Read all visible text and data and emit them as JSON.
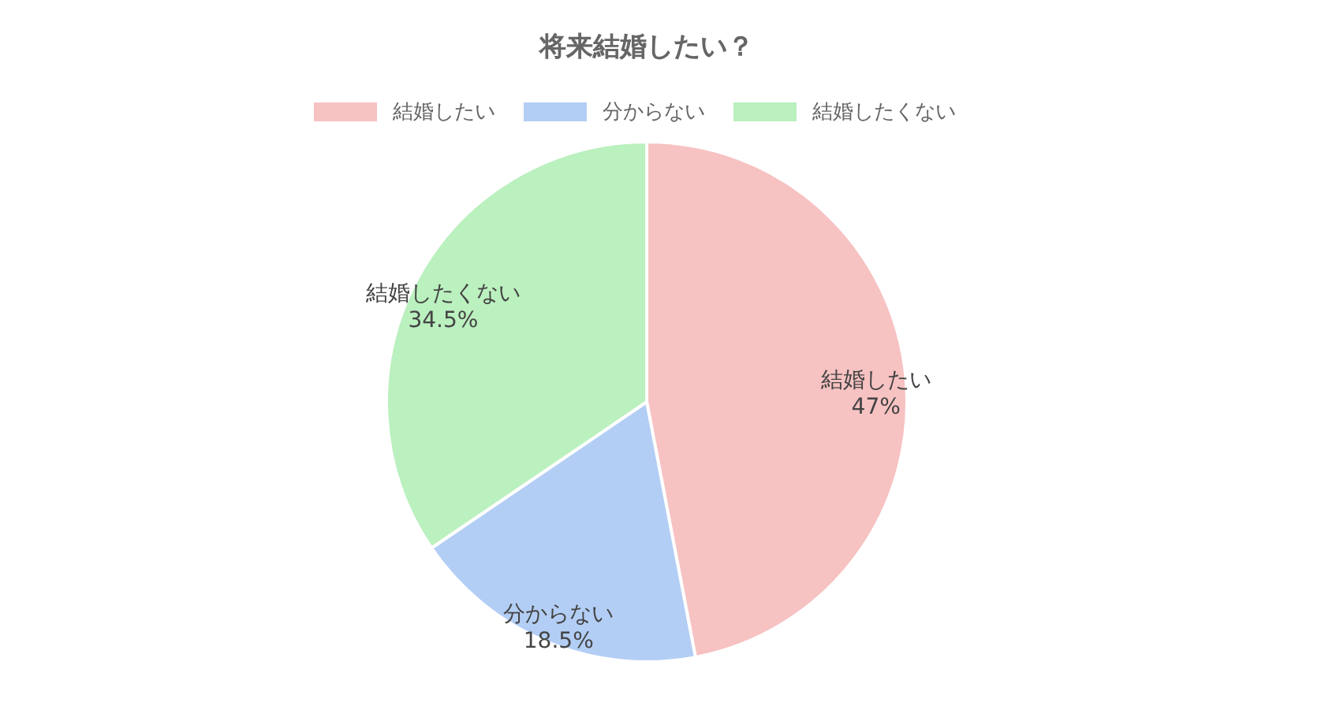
{
  "chart_data": {
    "type": "pie",
    "title": "将来結婚したい？",
    "categories": [
      "結婚したい",
      "分からない",
      "結婚したくない"
    ],
    "values": [
      47,
      18.5,
      34.5
    ],
    "value_labels": [
      "47%",
      "18.5%",
      "34.5%"
    ],
    "colors": [
      "#f7c2c2",
      "#b3cef5",
      "#bbf0bf"
    ],
    "legend": "top"
  }
}
